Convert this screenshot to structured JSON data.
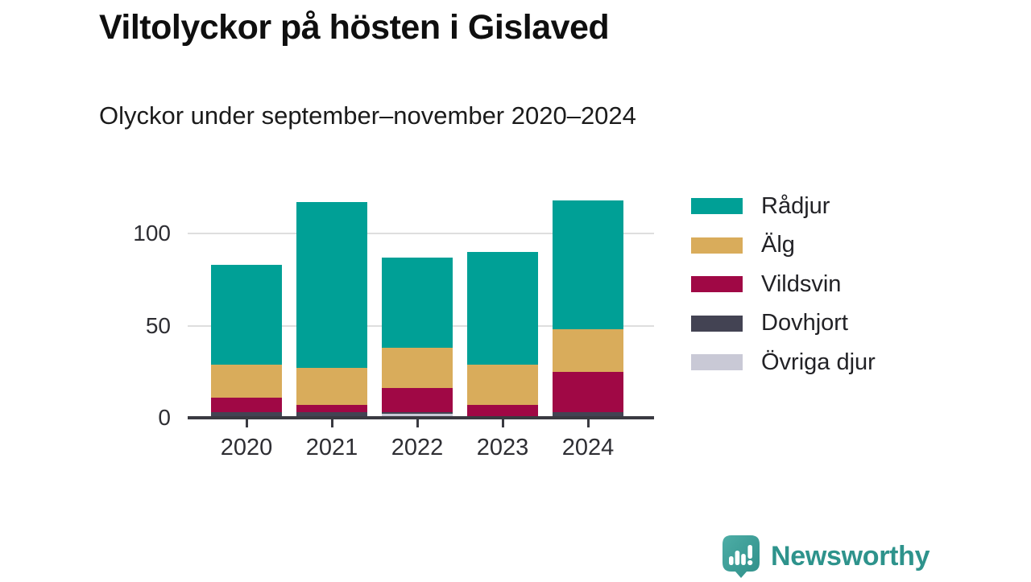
{
  "header": {
    "title": "Viltolyckor på hösten i Gislaved",
    "subtitle": "Olyckor under september–november 2020–2024"
  },
  "chart_data": {
    "type": "bar",
    "stacked": true,
    "title": "Viltolyckor på hösten i Gislaved",
    "subtitle": "Olyckor under september–november 2020–2024",
    "categories": [
      "2020",
      "2021",
      "2022",
      "2023",
      "2024"
    ],
    "series": [
      {
        "name": "Rådjur",
        "color": "#00a096",
        "values": [
          54,
          90,
          49,
          61,
          70
        ]
      },
      {
        "name": "Älg",
        "color": "#d9ac5b",
        "values": [
          18,
          20,
          22,
          22,
          23
        ]
      },
      {
        "name": "Vildsvin",
        "color": "#a00845",
        "values": [
          8,
          4,
          13,
          7,
          22
        ]
      },
      {
        "name": "Dovhjort",
        "color": "#434353",
        "values": [
          3,
          2,
          1,
          0,
          2
        ]
      },
      {
        "name": "Övriga djur",
        "color": "#c9c9d6",
        "values": [
          0,
          1,
          2,
          0,
          1
        ]
      }
    ],
    "totals": [
      83,
      117,
      87,
      90,
      118
    ],
    "stack_order_bottom_to_top": [
      "Övriga djur",
      "Dovhjort",
      "Vildsvin",
      "Älg",
      "Rådjur"
    ],
    "xlabel": "",
    "ylabel": "",
    "y_axis": {
      "ticks": [
        0,
        50,
        100
      ],
      "ylim": [
        0,
        125
      ]
    },
    "grid": "horizontal",
    "legend_position": "right",
    "colors": {
      "grid": "#dedede",
      "axis": "#3a3a41",
      "tick_text": "#2e2e33"
    }
  },
  "footer": {
    "brand": "Newsworthy",
    "brand_color": "#2e938c",
    "icon": "newsworthy-bubble-chart-icon"
  }
}
